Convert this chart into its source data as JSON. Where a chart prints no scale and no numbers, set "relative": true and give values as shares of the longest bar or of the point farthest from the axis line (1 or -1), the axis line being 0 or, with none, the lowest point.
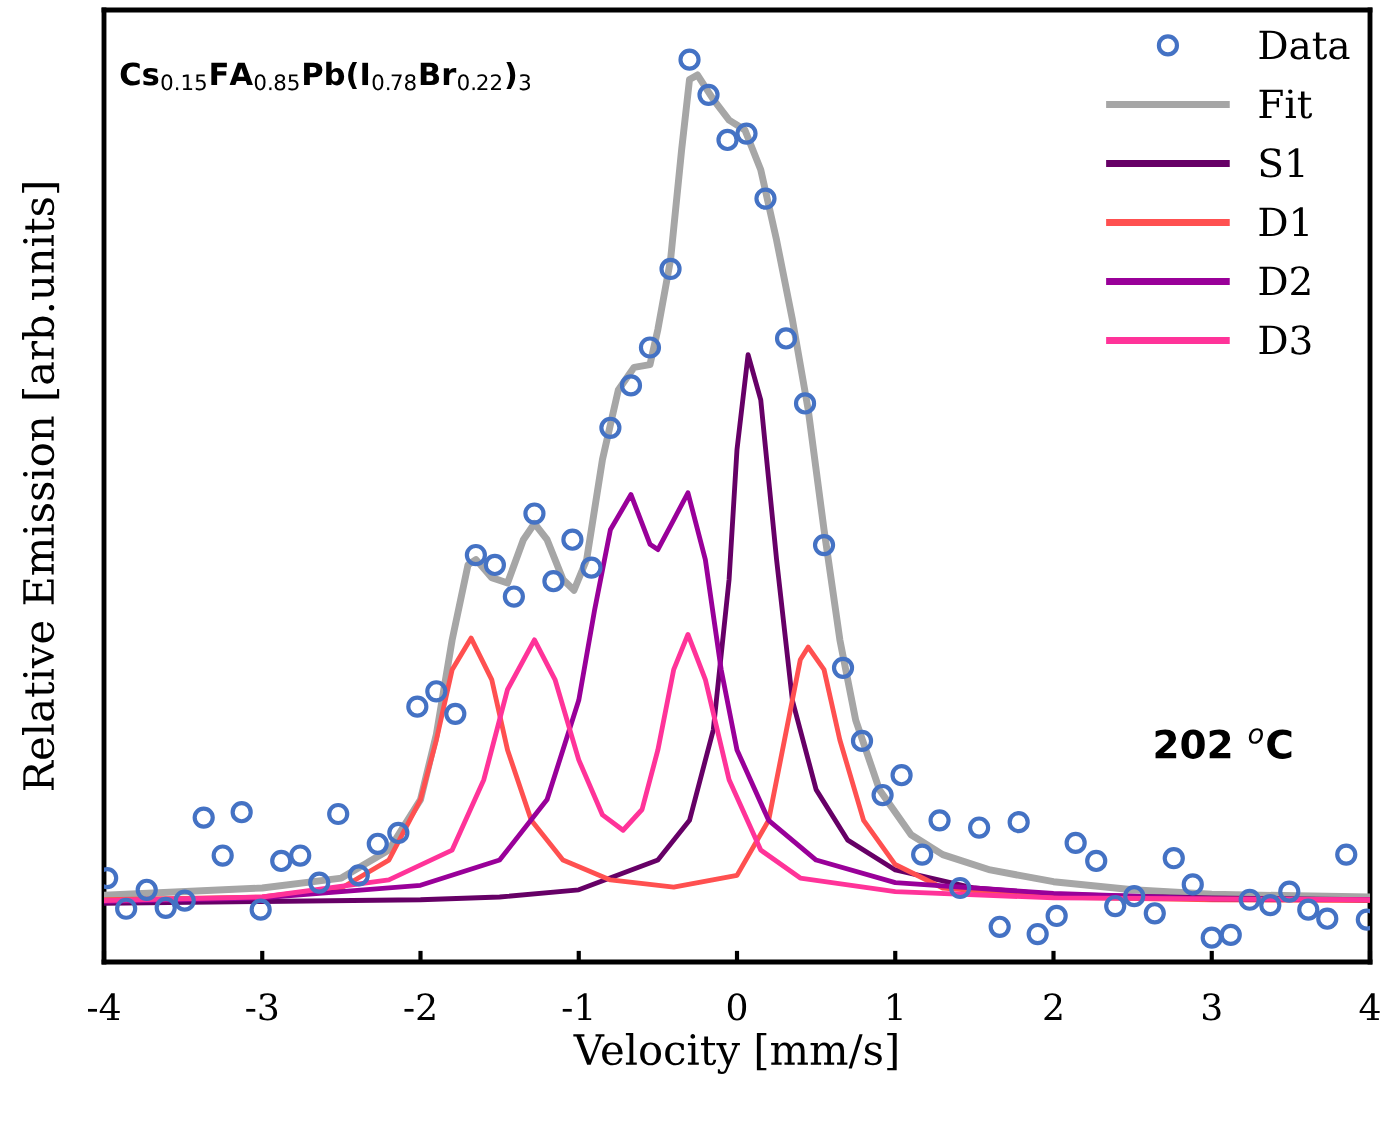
{
  "chart_data": {
    "type": "line",
    "relative": true,
    "xlabel": "Velocity [mm/s]",
    "ylabel": "Relative Emission [arb.units]",
    "xlim": [
      -4,
      4
    ],
    "xticks": [
      -4,
      -3,
      -2,
      -1,
      0,
      1,
      2,
      3,
      4
    ],
    "legend": "top right",
    "grid": false,
    "tick_labels": "x",
    "annotations": [
      "Cs$_{0.15}$FA$_{0.85}$Pb(I$_{0.78}$Br$_{0.22}$)$_{3}$",
      "202 $^{o}$C"
    ],
    "series": [
      {
        "name": "Data",
        "type": "scatter",
        "marker": "circle",
        "color": "#4472c4",
        "x": [
          -3.98,
          -3.86,
          -3.73,
          -3.61,
          -3.49,
          -3.37,
          -3.25,
          -3.13,
          -3.01,
          -2.88,
          -2.76,
          -2.64,
          -2.52,
          -2.39,
          -2.27,
          -2.14,
          -2.02,
          -1.9,
          -1.78,
          -1.65,
          -1.53,
          -1.41,
          -1.28,
          -1.16,
          -1.04,
          -0.92,
          -0.8,
          -0.67,
          -0.55,
          -0.42,
          -0.3,
          -0.18,
          -0.06,
          0.06,
          0.18,
          0.31,
          0.43,
          0.55,
          0.67,
          0.79,
          0.92,
          1.04,
          1.17,
          1.28,
          1.41,
          1.53,
          1.66,
          1.78,
          1.9,
          2.02,
          2.14,
          2.27,
          2.39,
          2.51,
          2.64,
          2.76,
          2.88,
          3.0,
          3.12,
          3.24,
          3.37,
          3.49,
          3.61,
          3.73,
          3.85,
          3.98
        ],
        "values": [
          0.093,
          0.059,
          0.08,
          0.06,
          0.068,
          0.16,
          0.118,
          0.166,
          0.058,
          0.112,
          0.118,
          0.088,
          0.164,
          0.096,
          0.131,
          0.143,
          0.283,
          0.3,
          0.275,
          0.451,
          0.44,
          0.405,
          0.497,
          0.422,
          0.468,
          0.437,
          0.592,
          0.639,
          0.681,
          0.768,
          1.0,
          0.961,
          0.911,
          0.918,
          0.846,
          0.691,
          0.619,
          0.462,
          0.326,
          0.245,
          0.185,
          0.207,
          0.119,
          0.157,
          0.082,
          0.149,
          0.039,
          0.155,
          0.031,
          0.051,
          0.132,
          0.112,
          0.062,
          0.073,
          0.054,
          0.115,
          0.086,
          0.027,
          0.03,
          0.069,
          0.063,
          0.078,
          0.058,
          0.048,
          0.119,
          0.047
        ]
      },
      {
        "name": "Fit",
        "color": "#a6a6a6",
        "x": [
          -4,
          -3,
          -2.5,
          -2.2,
          -2.0,
          -1.9,
          -1.8,
          -1.7,
          -1.65,
          -1.55,
          -1.45,
          -1.35,
          -1.28,
          -1.2,
          -1.1,
          -1.03,
          -0.95,
          -0.85,
          -0.75,
          -0.65,
          -0.55,
          -0.5,
          -0.42,
          -0.35,
          -0.3,
          -0.25,
          -0.15,
          -0.05,
          0.05,
          0.15,
          0.25,
          0.35,
          0.45,
          0.55,
          0.65,
          0.75,
          0.9,
          1.1,
          1.3,
          1.6,
          2.0,
          2.5,
          3.0,
          4.0
        ],
        "values": [
          0.074,
          0.082,
          0.093,
          0.124,
          0.18,
          0.252,
          0.357,
          0.44,
          0.446,
          0.426,
          0.42,
          0.468,
          0.486,
          0.468,
          0.424,
          0.412,
          0.446,
          0.557,
          0.634,
          0.659,
          0.662,
          0.701,
          0.778,
          0.9,
          0.978,
          0.983,
          0.956,
          0.933,
          0.922,
          0.878,
          0.8,
          0.712,
          0.612,
          0.479,
          0.357,
          0.268,
          0.191,
          0.141,
          0.119,
          0.102,
          0.089,
          0.08,
          0.075,
          0.072
        ]
      },
      {
        "name": "S1",
        "color": "#660066",
        "x": [
          -4,
          -3,
          -2,
          -1.5,
          -1,
          -0.5,
          -0.3,
          -0.15,
          -0.05,
          0.0,
          0.07,
          0.15,
          0.25,
          0.35,
          0.5,
          0.7,
          1.0,
          1.5,
          2,
          3,
          4
        ],
        "values": [
          0.065,
          0.067,
          0.069,
          0.072,
          0.08,
          0.113,
          0.157,
          0.257,
          0.424,
          0.568,
          0.673,
          0.623,
          0.446,
          0.29,
          0.191,
          0.135,
          0.102,
          0.082,
          0.075,
          0.071,
          0.069
        ]
      },
      {
        "name": "D1",
        "color": "#ff5050",
        "x": [
          -4,
          -3,
          -2.5,
          -2.2,
          -2.0,
          -1.9,
          -1.8,
          -1.68,
          -1.55,
          -1.45,
          -1.3,
          -1.1,
          -0.8,
          -0.4,
          0,
          0.2,
          0.3,
          0.4,
          0.45,
          0.55,
          0.65,
          0.8,
          1.0,
          1.3,
          2,
          3,
          4
        ],
        "values": [
          0.069,
          0.072,
          0.082,
          0.113,
          0.18,
          0.246,
          0.324,
          0.359,
          0.313,
          0.235,
          0.157,
          0.113,
          0.091,
          0.083,
          0.096,
          0.157,
          0.246,
          0.335,
          0.349,
          0.324,
          0.246,
          0.157,
          0.108,
          0.082,
          0.072,
          0.069,
          0.068
        ]
      },
      {
        "name": "D2",
        "color": "#990099",
        "x": [
          -4,
          -3,
          -2,
          -1.5,
          -1.2,
          -1.0,
          -0.9,
          -0.8,
          -0.67,
          -0.55,
          -0.5,
          -0.4,
          -0.31,
          -0.2,
          -0.1,
          0,
          0.2,
          0.5,
          1,
          2,
          3,
          4
        ],
        "values": [
          0.067,
          0.071,
          0.085,
          0.113,
          0.18,
          0.29,
          0.39,
          0.479,
          0.518,
          0.463,
          0.457,
          0.49,
          0.52,
          0.446,
          0.324,
          0.235,
          0.157,
          0.113,
          0.088,
          0.076,
          0.07,
          0.069
        ]
      },
      {
        "name": "D3",
        "color": "#ff3399",
        "x": [
          -4,
          -3,
          -2.2,
          -1.8,
          -1.6,
          -1.45,
          -1.28,
          -1.15,
          -1.0,
          -0.85,
          -0.72,
          -0.6,
          -0.5,
          -0.4,
          -0.31,
          -0.2,
          -0.05,
          0.15,
          0.4,
          1,
          2,
          4
        ],
        "values": [
          0.068,
          0.072,
          0.091,
          0.124,
          0.202,
          0.302,
          0.357,
          0.313,
          0.224,
          0.163,
          0.146,
          0.169,
          0.235,
          0.324,
          0.363,
          0.313,
          0.202,
          0.124,
          0.093,
          0.078,
          0.071,
          0.069
        ]
      }
    ]
  }
}
